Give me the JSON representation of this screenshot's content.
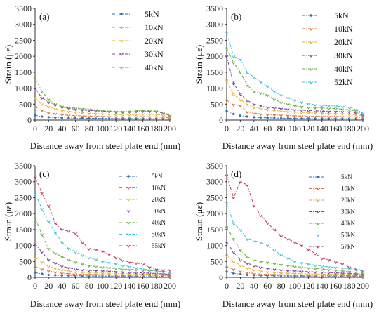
{
  "chart_data": [
    {
      "type": "line",
      "panel": "(a)",
      "xlabel": "Distance away from steel plate end (mm)",
      "ylabel": "Strain (με)",
      "xlim": [
        0,
        200
      ],
      "ylim": [
        0,
        3500
      ],
      "xticks": [
        "0",
        "20",
        "40",
        "60",
        "80",
        "100",
        "120",
        "140",
        "160",
        "180",
        "200"
      ],
      "yticks": [
        "0",
        "500",
        "1000",
        "1500",
        "2000",
        "2500",
        "3000",
        "3500"
      ],
      "legend": "top-right",
      "grid": false,
      "x": [
        0,
        10,
        20,
        30,
        40,
        50,
        60,
        70,
        80,
        90,
        100,
        110,
        120,
        130,
        140,
        150,
        160,
        170,
        180,
        190,
        200
      ],
      "series": [
        {
          "name": "5kN",
          "color": "#2f6db5",
          "values": [
            150,
            110,
            90,
            80,
            70,
            65,
            60,
            58,
            55,
            52,
            50,
            48,
            45,
            45,
            45,
            45,
            45,
            45,
            45,
            40,
            30
          ]
        },
        {
          "name": "10kN",
          "color": "#e0703a",
          "values": [
            420,
            300,
            230,
            200,
            170,
            150,
            140,
            130,
            120,
            115,
            110,
            105,
            100,
            100,
            100,
            100,
            105,
            100,
            100,
            90,
            60
          ]
        },
        {
          "name": "20kN",
          "color": "#e6b12e",
          "values": [
            720,
            500,
            420,
            350,
            300,
            270,
            250,
            230,
            210,
            200,
            190,
            180,
            175,
            170,
            170,
            175,
            190,
            180,
            175,
            150,
            100
          ]
        },
        {
          "name": "30kN",
          "color": "#7b3fa0",
          "values": [
            1000,
            700,
            560,
            470,
            400,
            370,
            340,
            320,
            300,
            290,
            280,
            260,
            250,
            250,
            260,
            270,
            280,
            270,
            260,
            220,
            140
          ]
        },
        {
          "name": "40kN",
          "color": "#6aae3c",
          "values": [
            1330,
            900,
            650,
            500,
            430,
            400,
            380,
            360,
            340,
            320,
            300,
            280,
            270,
            270,
            280,
            290,
            300,
            290,
            280,
            240,
            160
          ]
        }
      ]
    },
    {
      "type": "line",
      "panel": "(b)",
      "xlabel": "Distance away from steel plate end (mm)",
      "ylabel": "Strain (με)",
      "xlim": [
        0,
        200
      ],
      "ylim": [
        0,
        3500
      ],
      "xticks": [
        "0",
        "20",
        "40",
        "60",
        "80",
        "100",
        "120",
        "140",
        "160",
        "180",
        "200"
      ],
      "yticks": [
        "0",
        "500",
        "1000",
        "1500",
        "2000",
        "2500",
        "3000",
        "3500"
      ],
      "legend": "top-right",
      "grid": false,
      "x": [
        0,
        10,
        20,
        30,
        40,
        50,
        60,
        70,
        80,
        90,
        100,
        110,
        120,
        130,
        140,
        150,
        160,
        170,
        180,
        190,
        200
      ],
      "series": [
        {
          "name": "5kN",
          "color": "#2f6db5",
          "values": [
            280,
            190,
            140,
            110,
            90,
            80,
            70,
            65,
            60,
            55,
            50,
            50,
            50,
            45,
            45,
            45,
            45,
            40,
            40,
            40,
            30
          ]
        },
        {
          "name": "10kN",
          "color": "#e0703a",
          "values": [
            620,
            480,
            460,
            260,
            220,
            190,
            170,
            160,
            150,
            140,
            130,
            125,
            120,
            115,
            115,
            110,
            110,
            105,
            100,
            95,
            80
          ]
        },
        {
          "name": "20kN",
          "color": "#e6b12e",
          "values": [
            1250,
            800,
            640,
            500,
            400,
            360,
            330,
            300,
            280,
            260,
            250,
            240,
            230,
            220,
            210,
            200,
            200,
            190,
            180,
            170,
            130
          ]
        },
        {
          "name": "30kN",
          "color": "#7b3fa0",
          "values": [
            2000,
            1150,
            820,
            620,
            500,
            450,
            400,
            380,
            360,
            340,
            320,
            310,
            300,
            290,
            280,
            270,
            270,
            260,
            250,
            220,
            160
          ]
        },
        {
          "name": "40kN",
          "color": "#6aae3c",
          "values": [
            2250,
            1800,
            1500,
            1100,
            900,
            850,
            780,
            650,
            550,
            500,
            450,
            420,
            400,
            390,
            380,
            370,
            360,
            340,
            320,
            280,
            200
          ]
        },
        {
          "name": "52kN",
          "color": "#3fc1d8",
          "values": [
            2750,
            2000,
            1900,
            1500,
            1350,
            1200,
            1050,
            900,
            780,
            700,
            620,
            560,
            520,
            480,
            460,
            450,
            440,
            420,
            400,
            330,
            220
          ]
        }
      ]
    },
    {
      "type": "line",
      "panel": "(c)",
      "xlabel": "Distance away from steel plate end (mm)",
      "ylabel": "Strain (με)",
      "xlim": [
        0,
        200
      ],
      "ylim": [
        0,
        3500
      ],
      "xticks": [
        "0",
        "20",
        "40",
        "60",
        "80",
        "100",
        "120",
        "140",
        "160",
        "180",
        "200"
      ],
      "yticks": [
        "0",
        "500",
        "1000",
        "1500",
        "2000",
        "2500",
        "3000",
        "3500"
      ],
      "legend": "top-right",
      "grid": false,
      "x": [
        0,
        10,
        20,
        30,
        40,
        50,
        60,
        70,
        80,
        90,
        100,
        110,
        120,
        130,
        140,
        150,
        160,
        170,
        180,
        190,
        200
      ],
      "series": [
        {
          "name": "5kN",
          "color": "#2f6db5",
          "values": [
            150,
            110,
            80,
            70,
            60,
            55,
            50,
            48,
            45,
            42,
            40,
            40,
            40,
            38,
            38,
            36,
            35,
            35,
            35,
            33,
            30
          ]
        },
        {
          "name": "10kN",
          "color": "#e0703a",
          "values": [
            330,
            260,
            200,
            160,
            130,
            115,
            100,
            95,
            90,
            85,
            80,
            78,
            75,
            72,
            70,
            68,
            65,
            63,
            60,
            55,
            50
          ]
        },
        {
          "name": "20kN",
          "color": "#e6b12e",
          "values": [
            620,
            480,
            350,
            280,
            230,
            200,
            170,
            160,
            150,
            140,
            130,
            125,
            120,
            115,
            110,
            105,
            100,
            95,
            90,
            85,
            80
          ]
        },
        {
          "name": "30kN",
          "color": "#7b3fa0",
          "values": [
            1050,
            800,
            550,
            450,
            350,
            300,
            260,
            240,
            220,
            210,
            200,
            190,
            180,
            170,
            160,
            150,
            140,
            130,
            120,
            110,
            100
          ]
        },
        {
          "name": "40kN",
          "color": "#6aae3c",
          "values": [
            1870,
            1350,
            900,
            750,
            650,
            550,
            480,
            420,
            370,
            340,
            320,
            300,
            280,
            260,
            250,
            240,
            220,
            210,
            200,
            180,
            150
          ]
        },
        {
          "name": "50kN",
          "color": "#3fc1d8",
          "values": [
            2650,
            2150,
            1750,
            1400,
            1100,
            900,
            800,
            700,
            620,
            560,
            500,
            460,
            420,
            380,
            340,
            300,
            260,
            230,
            200,
            180,
            160
          ]
        },
        {
          "name": "55kN",
          "color": "#c03a5a",
          "values": [
            3150,
            2650,
            2250,
            1700,
            1500,
            1450,
            1380,
            1100,
            900,
            870,
            820,
            720,
            620,
            540,
            480,
            450,
            420,
            320,
            250,
            230,
            230
          ]
        }
      ]
    },
    {
      "type": "line",
      "panel": "(d)",
      "xlabel": "Distance away from steel plate end (mm)",
      "ylabel": "Strain (με)",
      "xlim": [
        0,
        200
      ],
      "ylim": [
        0,
        3500
      ],
      "xticks": [
        "0",
        "20",
        "40",
        "60",
        "80",
        "100",
        "120",
        "140",
        "160",
        "180",
        "200"
      ],
      "yticks": [
        "0",
        "500",
        "1000",
        "1500",
        "2000",
        "2500",
        "3000",
        "3500"
      ],
      "legend": "top-right",
      "grid": false,
      "x": [
        0,
        10,
        20,
        30,
        40,
        50,
        60,
        70,
        80,
        90,
        100,
        110,
        120,
        130,
        140,
        150,
        160,
        170,
        180,
        190,
        200
      ],
      "series": [
        {
          "name": "5kN",
          "color": "#2f6db5",
          "values": [
            180,
            130,
            100,
            80,
            70,
            60,
            55,
            50,
            48,
            45,
            42,
            40,
            40,
            38,
            36,
            35,
            33,
            32,
            30,
            28,
            25
          ]
        },
        {
          "name": "10kN",
          "color": "#e0703a",
          "values": [
            320,
            250,
            190,
            150,
            120,
            100,
            90,
            85,
            80,
            75,
            70,
            68,
            65,
            62,
            60,
            58,
            55,
            52,
            50,
            48,
            45
          ]
        },
        {
          "name": "20kN",
          "color": "#e6b12e",
          "values": [
            700,
            500,
            380,
            300,
            240,
            200,
            170,
            150,
            140,
            130,
            120,
            115,
            110,
            105,
            100,
            98,
            95,
            92,
            90,
            85,
            80
          ]
        },
        {
          "name": "30kN",
          "color": "#7b3fa0",
          "values": [
            1100,
            800,
            550,
            450,
            370,
            320,
            280,
            250,
            230,
            210,
            200,
            190,
            180,
            170,
            160,
            150,
            140,
            130,
            120,
            110,
            100
          ]
        },
        {
          "name": "40kN",
          "color": "#6aae3c",
          "values": [
            1580,
            1200,
            850,
            650,
            550,
            500,
            470,
            430,
            400,
            370,
            340,
            320,
            300,
            280,
            260,
            240,
            220,
            200,
            180,
            160,
            140
          ]
        },
        {
          "name": "50kN",
          "color": "#3fc1d8",
          "values": [
            2350,
            1700,
            1500,
            1200,
            1150,
            1100,
            1000,
            850,
            700,
            600,
            500,
            460,
            420,
            380,
            350,
            330,
            310,
            290,
            270,
            240,
            200
          ]
        },
        {
          "name": "57kN",
          "color": "#c03a5a",
          "values": [
            3200,
            2500,
            3000,
            2900,
            2250,
            1950,
            1700,
            1500,
            1300,
            1200,
            1100,
            1000,
            880,
            750,
            600,
            550,
            480,
            420,
            320,
            280,
            200
          ]
        }
      ]
    }
  ]
}
